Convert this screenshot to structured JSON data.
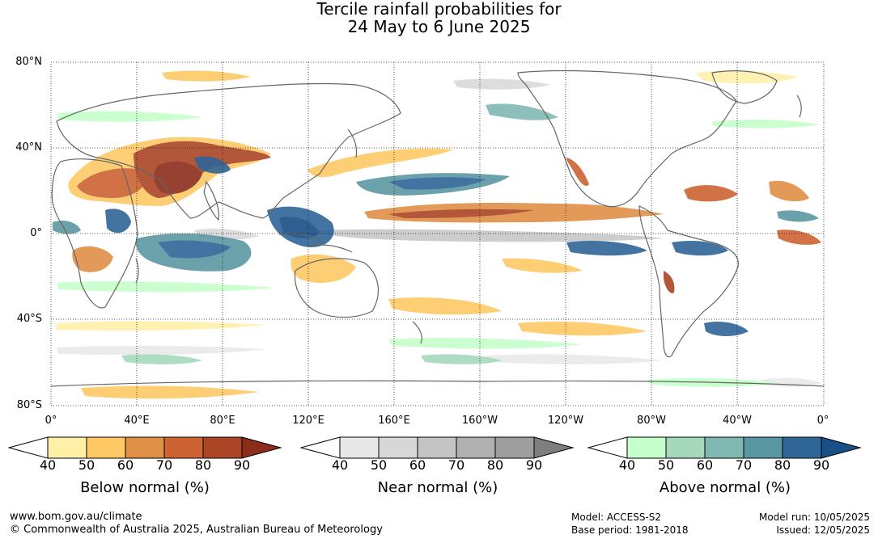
{
  "title": {
    "line1": "Tercile rainfall probabilities for",
    "line2": "24 May to 6 June 2025"
  },
  "map": {
    "lat_labels": [
      "80°N",
      "40°N",
      "0°",
      "40°S",
      "80°S"
    ],
    "lon_labels": [
      "0°",
      "40°E",
      "80°E",
      "120°E",
      "160°E",
      "160°W",
      "120°W",
      "80°W",
      "40°W",
      "0°"
    ],
    "ocean_color": "#ffffff",
    "coast_color": "#666666",
    "grid": true
  },
  "legends": [
    {
      "label": "Below normal (%)",
      "ticks": [
        "40",
        "50",
        "60",
        "70",
        "80",
        "90"
      ],
      "colors": [
        "#fff0a8",
        "#fec965",
        "#e08f47",
        "#cd6332",
        "#aa4525",
        "#8c2d1c"
      ]
    },
    {
      "label": "Near normal (%)",
      "ticks": [
        "40",
        "50",
        "60",
        "70",
        "80",
        "90"
      ],
      "colors": [
        "#e8e8e8",
        "#d7d7d7",
        "#c4c4c4",
        "#b0b0b0",
        "#9e9e9e",
        "#7e7e7e"
      ]
    },
    {
      "label": "Above normal (%)",
      "ticks": [
        "40",
        "50",
        "60",
        "70",
        "80",
        "90"
      ],
      "colors": [
        "#c6ffcb",
        "#a6d9bc",
        "#82b8b2",
        "#5b97a3",
        "#2f6597",
        "#174f86"
      ]
    }
  ],
  "footer": {
    "website": "www.bom.gov.au/climate",
    "copyright": "© Commonwealth of Australia 2025, Australian Bureau of Meteorology",
    "model": "Model: ACCESS-S2",
    "base_period": "Base period: 1981-2018",
    "model_run": "Model run: 10/05/2025",
    "issued": "Issued: 12/05/2025"
  }
}
